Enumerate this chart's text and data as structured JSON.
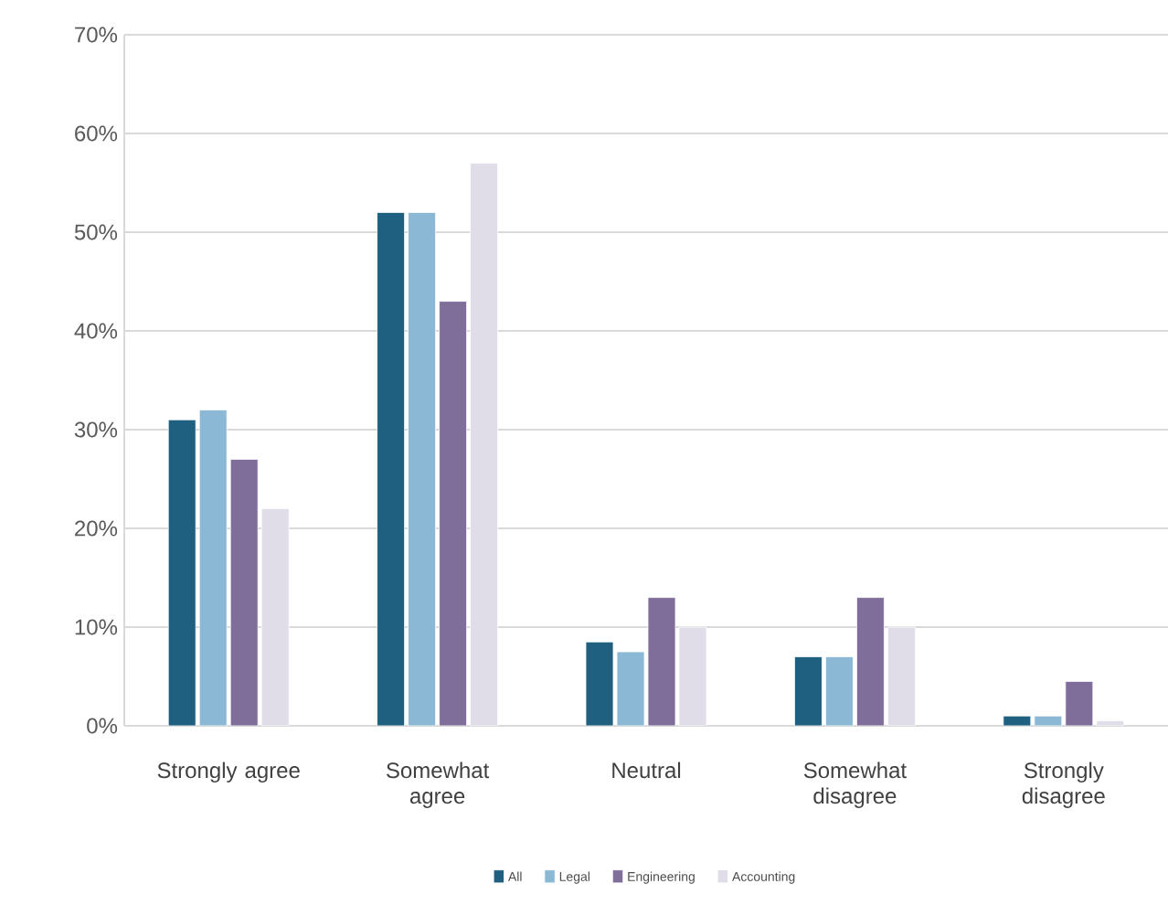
{
  "chart_data": {
    "type": "bar",
    "categories": [
      "Strongly agree",
      "Somewhat agree",
      "Neutral",
      "Somewhat disagree",
      "Strongly disagree"
    ],
    "series": [
      {
        "name": "All",
        "color": "#1f5f80",
        "values": [
          31,
          52,
          8.5,
          7,
          1
        ]
      },
      {
        "name": "Legal",
        "color": "#8bb8d4",
        "values": [
          32,
          52,
          7.5,
          7,
          1
        ]
      },
      {
        "name": "Engineering",
        "color": "#7f6e99",
        "values": [
          27,
          43,
          13,
          13,
          4.5
        ]
      },
      {
        "name": "Accounting",
        "color": "#e0dce8",
        "values": [
          22,
          57,
          10,
          10,
          0.5
        ]
      }
    ],
    "ylim": [
      0,
      70
    ],
    "yticks": [
      {
        "value": 0,
        "label": "0%"
      },
      {
        "value": 10,
        "label": "10%"
      },
      {
        "value": 20,
        "label": "20%"
      },
      {
        "value": 30,
        "label": "30%"
      },
      {
        "value": 40,
        "label": "40%"
      },
      {
        "value": 50,
        "label": "50%"
      },
      {
        "value": 60,
        "label": "60%"
      },
      {
        "value": 70,
        "label": "70%"
      }
    ],
    "grid": "y",
    "legend": "bottom"
  }
}
